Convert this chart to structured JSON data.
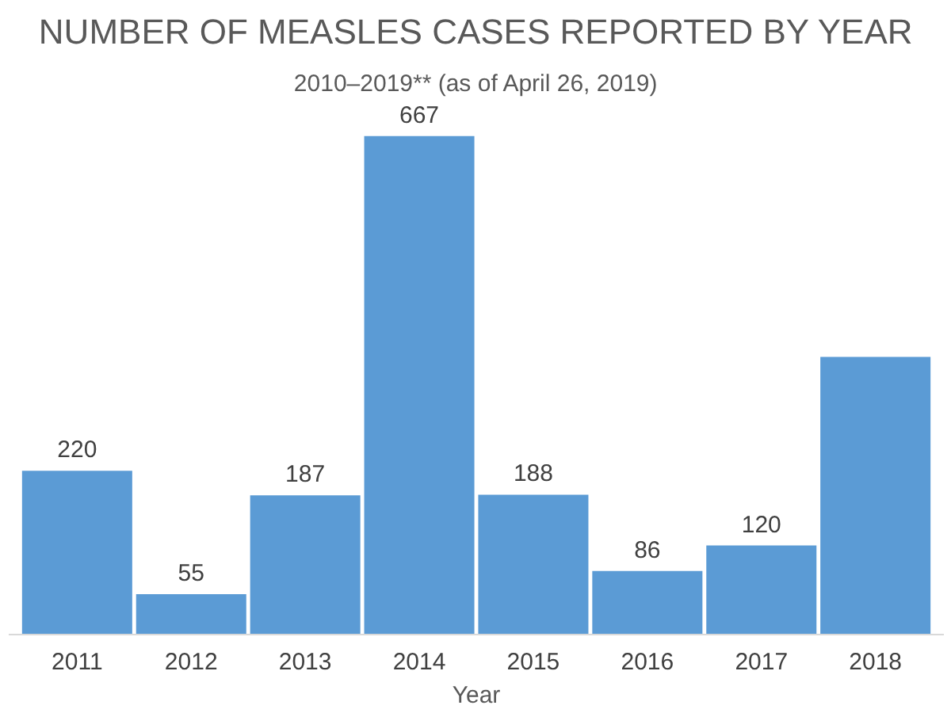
{
  "chart_data": {
    "type": "bar",
    "title": "NUMBER OF MEASLES CASES REPORTED BY YEAR",
    "subtitle": "2010–2019** (as of April 26, 2019)",
    "xlabel": "Year",
    "categories": [
      "2011",
      "2012",
      "2013",
      "2014",
      "2015",
      "2016",
      "2017",
      "2018"
    ],
    "values": [
      220,
      55,
      187,
      667,
      188,
      86,
      120,
      372
    ],
    "value_labels": [
      "220",
      "55",
      "187",
      "667",
      "188",
      "86",
      "120",
      null
    ],
    "color": "#5b9bd5",
    "tick_labels": "x"
  }
}
